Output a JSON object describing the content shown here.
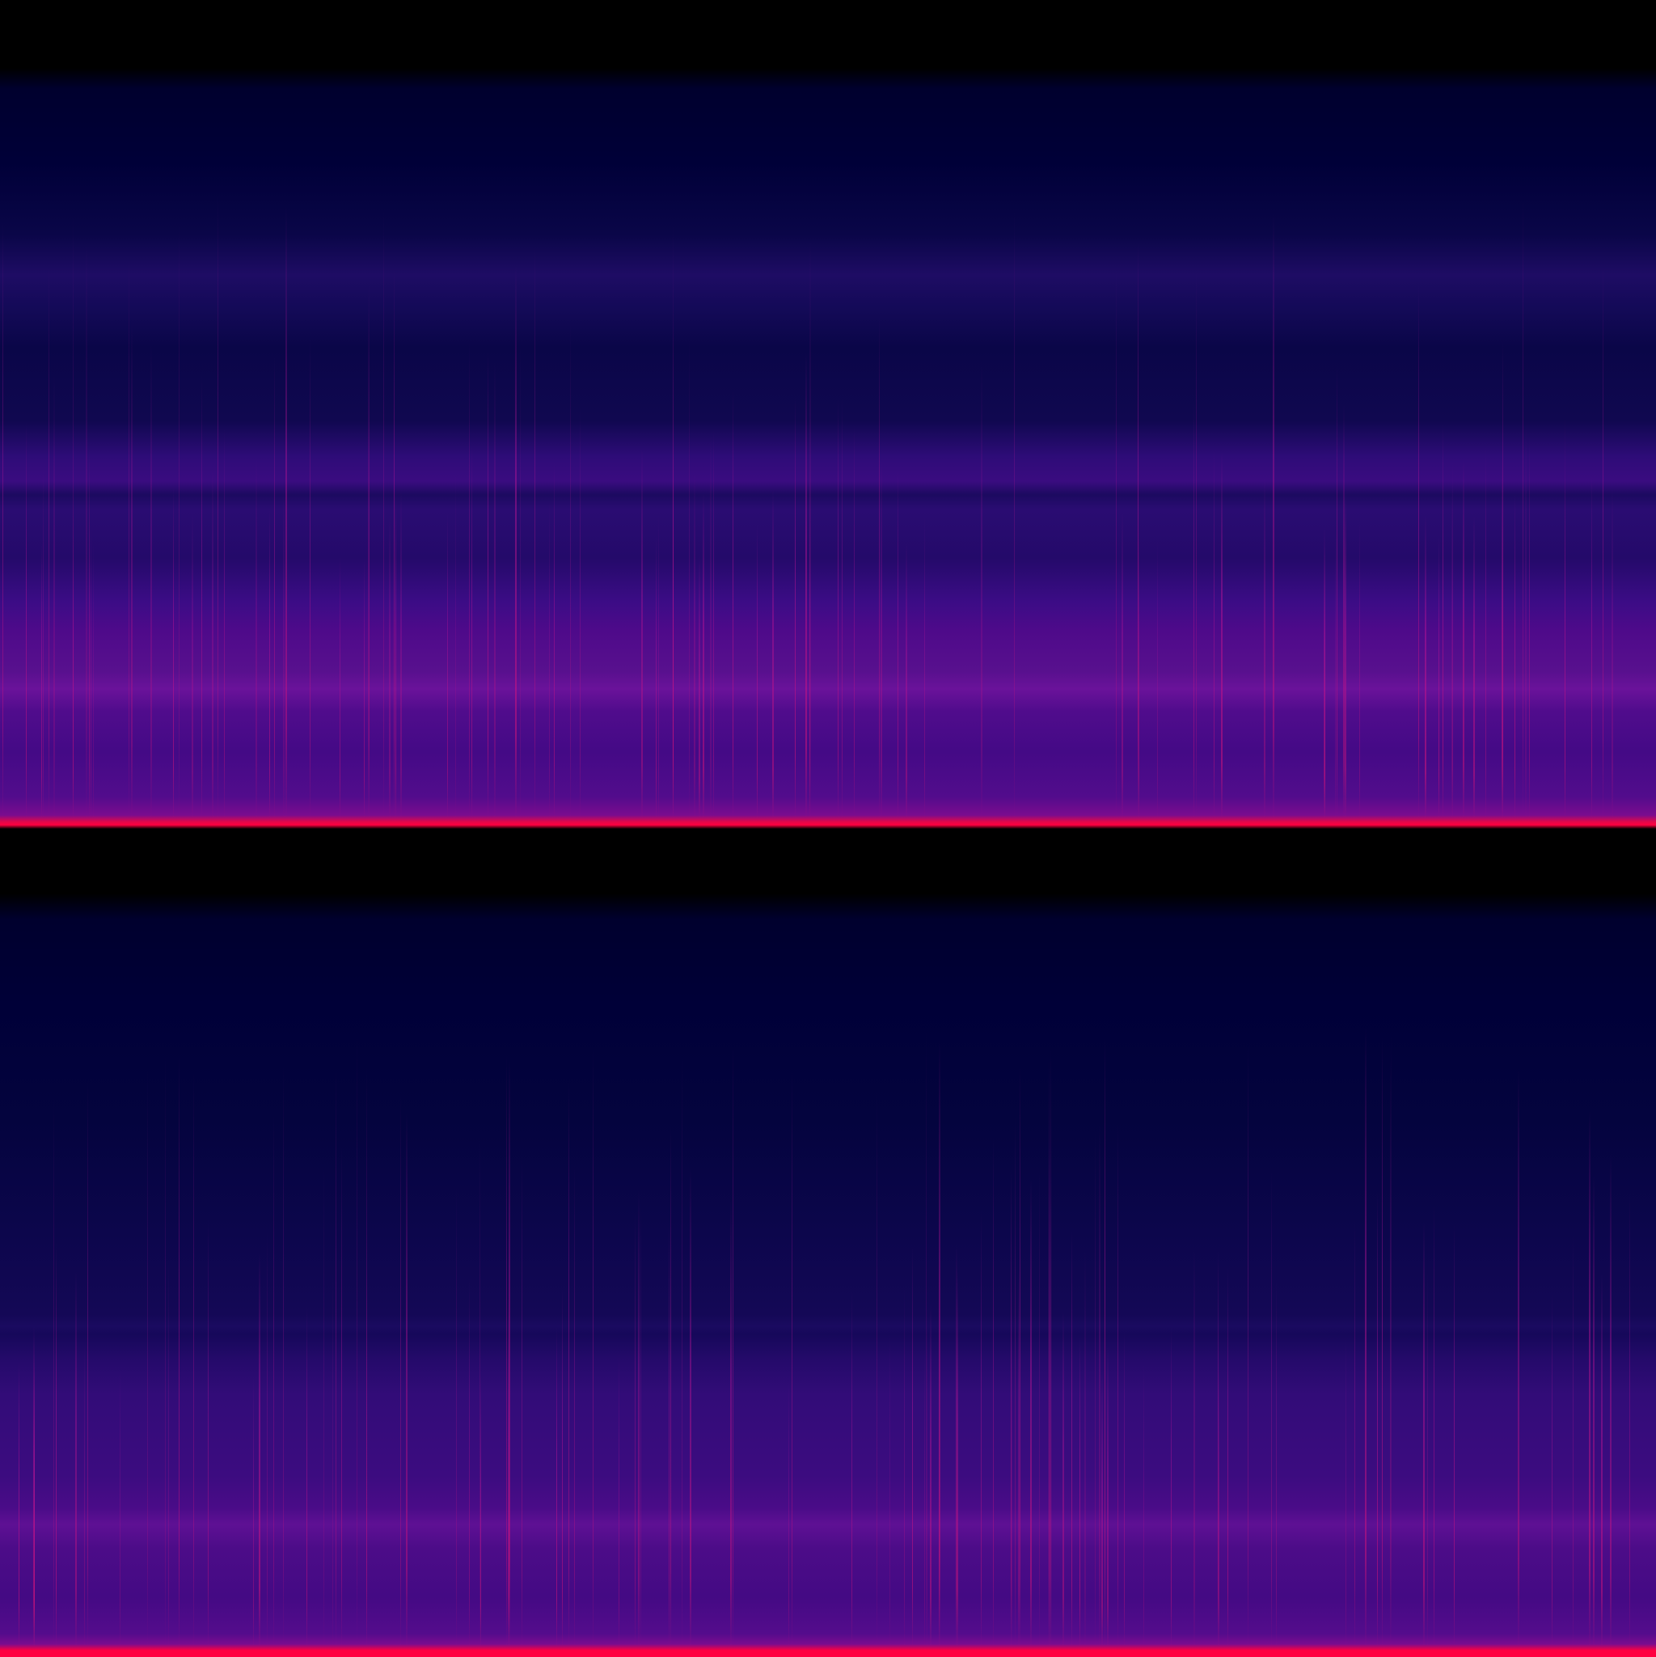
{
  "colors": {
    "background": "#000000",
    "low": "#000038",
    "mid": "#3c0c80",
    "high": "#6a129a",
    "peak": "#ff0040"
  }
}
